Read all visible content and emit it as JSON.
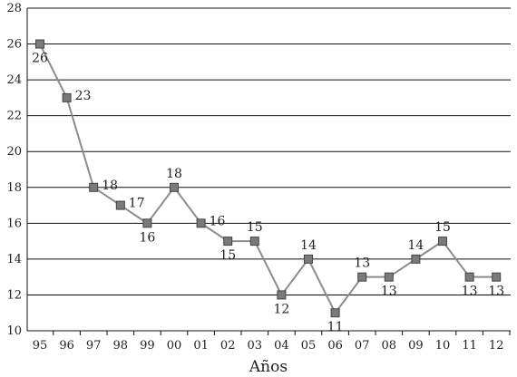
{
  "chart_data": {
    "type": "line",
    "xlabel": "Años",
    "ylabel": "",
    "title": "",
    "categories": [
      "95",
      "96",
      "97",
      "98",
      "99",
      "00",
      "01",
      "02",
      "03",
      "04",
      "05",
      "06",
      "07",
      "08",
      "09",
      "10",
      "11",
      "12"
    ],
    "series": [
      {
        "values": [
          26,
          23,
          18,
          17,
          16,
          18,
          16,
          15,
          15,
          12,
          14,
          11,
          13,
          13,
          14,
          15,
          13,
          13
        ]
      }
    ],
    "ylim": [
      10,
      28
    ],
    "yticks": [
      10,
      12,
      14,
      16,
      18,
      20,
      22,
      24,
      26,
      28
    ],
    "grid": true,
    "data_labels": [
      "26",
      "23",
      "18",
      "17",
      "16",
      "18",
      "16",
      "15",
      "15",
      "12",
      "14",
      "11",
      "13",
      "13",
      "14",
      "15",
      "13",
      "13"
    ],
    "colors": {
      "line": "#8c8c8c",
      "marker": "#7a7a7a",
      "marker_edge": "#444444",
      "grid": "#111111"
    }
  }
}
